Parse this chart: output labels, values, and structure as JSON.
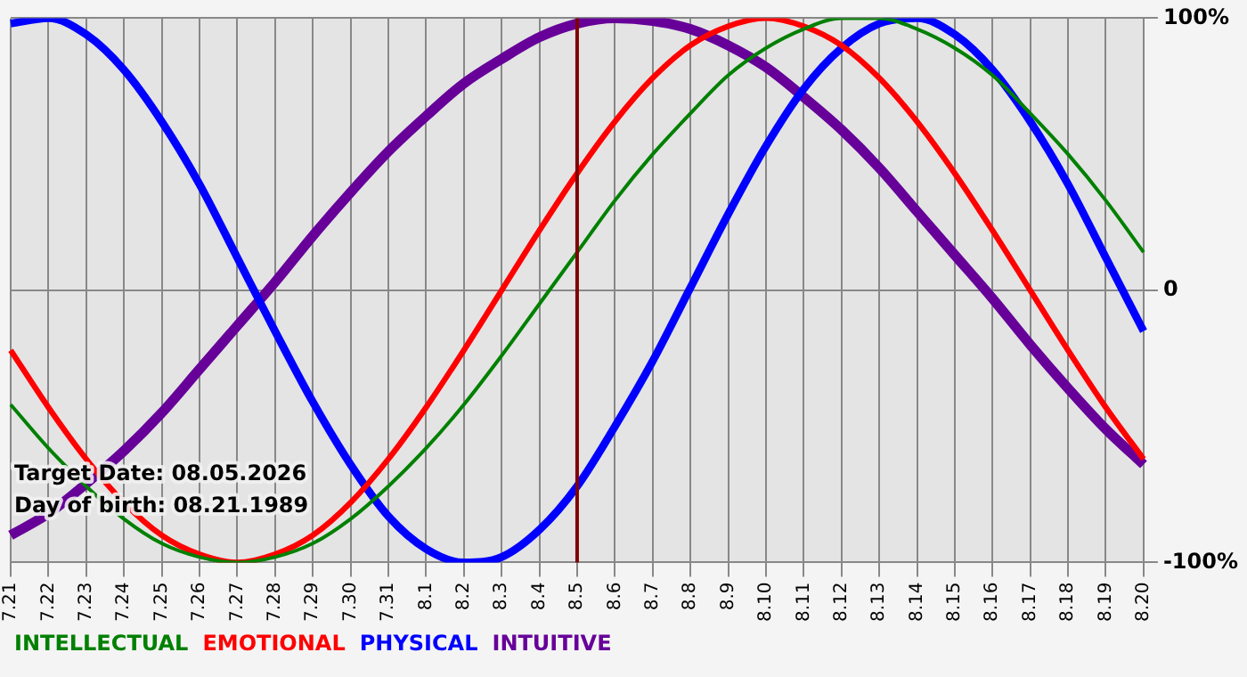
{
  "chart_data": {
    "type": "line",
    "categories": [
      "7.21",
      "7.22",
      "7.23",
      "7.24",
      "7.25",
      "7.26",
      "7.27",
      "7.28",
      "7.29",
      "7.30",
      "7.31",
      "8.1",
      "8.2",
      "8.3",
      "8.4",
      "8.5",
      "8.6",
      "8.7",
      "8.8",
      "8.9",
      "8.10",
      "8.11",
      "8.12",
      "8.13",
      "8.14",
      "8.15",
      "8.16",
      "8.17",
      "8.18",
      "8.19",
      "8.20"
    ],
    "series": [
      {
        "name": "INTELLECTUAL",
        "color": "#008000",
        "values": [
          -42,
          -58,
          -72,
          -84,
          -93,
          -98,
          -100,
          -98,
          -93,
          -84,
          -72,
          -58,
          -42,
          -24,
          -5,
          14,
          33,
          50,
          65,
          79,
          89,
          96,
          100,
          100,
          96,
          89,
          79,
          65,
          50,
          33,
          14
        ]
      },
      {
        "name": "EMOTIONAL",
        "color": "#ff0000",
        "values": [
          -22,
          -43,
          -62,
          -78,
          -90,
          -97,
          -100,
          -97,
          -90,
          -78,
          -62,
          -43,
          -22,
          0,
          22,
          43,
          62,
          78,
          90,
          97,
          100,
          97,
          90,
          78,
          62,
          43,
          22,
          0,
          -22,
          -43,
          -62
        ]
      },
      {
        "name": "PHYSICAL",
        "color": "#0000ff",
        "values": [
          98,
          100,
          94,
          81,
          62,
          39,
          12,
          -15,
          -41,
          -64,
          -83,
          -95,
          -100,
          -98,
          -88,
          -72,
          -50,
          -26,
          1,
          28,
          53,
          74,
          89,
          98,
          100,
          94,
          81,
          62,
          39,
          12,
          -15
        ]
      },
      {
        "name": "INTUITIVE",
        "color": "#660099",
        "values": [
          -90,
          -82,
          -71,
          -59,
          -45,
          -29,
          -13,
          3,
          20,
          36,
          51,
          64,
          76,
          85,
          93,
          98,
          100,
          99,
          96,
          90,
          82,
          71,
          59,
          45,
          29,
          13,
          -3,
          -20,
          -36,
          -51,
          -64
        ]
      }
    ],
    "ylim": [
      -100,
      100
    ],
    "yticks": [
      {
        "value": 100,
        "label": "100%"
      },
      0,
      {
        "value": -100,
        "label": "-100%"
      }
    ],
    "ref_lines": [
      {
        "axis": "x",
        "value": "8.5",
        "color": "#800000"
      }
    ],
    "annotations": [
      "Target Date: 08.05.2026",
      "Day of birth: 08.21.1989"
    ],
    "grid": true,
    "legend": "bottom",
    "marker": "none",
    "line_style": "solid"
  }
}
